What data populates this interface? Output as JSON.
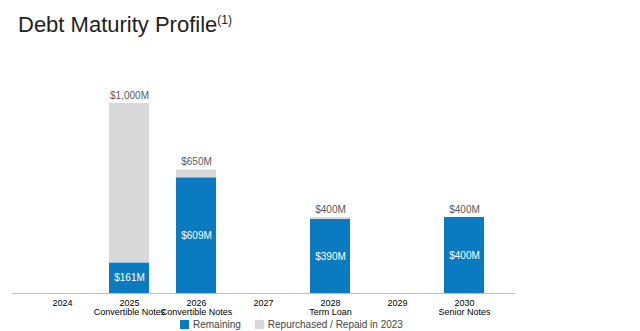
{
  "chart_data": {
    "type": "bar",
    "stacked": true,
    "title": "Debt Maturity Profile(1)",
    "categories": [
      "2024",
      "2025\nConvertible Notes",
      "2026\nConvertible Notes",
      "2027",
      "2028\nTerm Loan",
      "2029",
      "2030\nSenior Notes"
    ],
    "series": [
      {
        "name": "Remaining",
        "color": "#0b7bc1",
        "values": [
          null,
          161,
          609,
          null,
          390,
          null,
          400
        ],
        "data_labels": true,
        "value_labels": [
          null,
          "$161M",
          "$609M",
          null,
          "$390M",
          null,
          "$400M"
        ]
      },
      {
        "name": "Repurchased / Repaid in 2023",
        "color": "#d9d9d9",
        "values": [
          null,
          839,
          41,
          null,
          10,
          null,
          0
        ]
      }
    ],
    "totals": [
      null,
      1000,
      650,
      null,
      400,
      null,
      400
    ],
    "total_labels": [
      null,
      "$1,000M",
      "$650M",
      null,
      "$400M",
      null,
      "$400M"
    ],
    "ylim": [
      0,
      1000
    ],
    "tick_labels": "x",
    "grid": false,
    "legend": "bottom"
  }
}
